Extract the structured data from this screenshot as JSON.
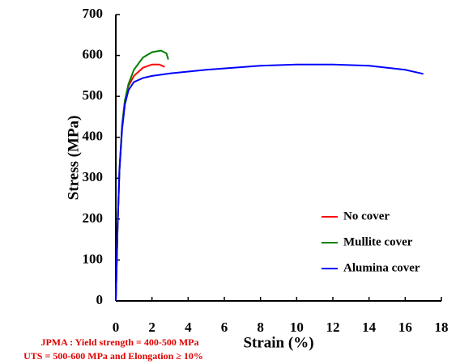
{
  "chart_data": {
    "type": "line",
    "x_label": "Strain (%)",
    "y_label": "Stress (MPa)",
    "xlim": [
      0,
      18
    ],
    "ylim": [
      0,
      700
    ],
    "xticks": [
      0,
      2,
      4,
      6,
      8,
      10,
      12,
      14,
      16,
      18
    ],
    "yticks": [
      0,
      100,
      200,
      300,
      400,
      500,
      600,
      700
    ],
    "legend": "lower right",
    "series": [
      {
        "name": "No cover",
        "color": "#ff0000",
        "x": [
          0,
          0.1,
          0.2,
          0.35,
          0.5,
          0.7,
          1.0,
          1.5,
          2.0,
          2.4,
          2.7
        ],
        "values": [
          0,
          180,
          320,
          430,
          490,
          525,
          550,
          570,
          578,
          578,
          572
        ]
      },
      {
        "name": "Mullite cover",
        "color": "#008000",
        "x": [
          0,
          0.1,
          0.2,
          0.35,
          0.5,
          0.7,
          1.0,
          1.5,
          2.0,
          2.5,
          2.8,
          2.9
        ],
        "values": [
          0,
          180,
          320,
          430,
          490,
          530,
          565,
          595,
          608,
          612,
          605,
          590
        ]
      },
      {
        "name": "Alumina cover",
        "color": "#0000ff",
        "x": [
          0,
          0.1,
          0.2,
          0.35,
          0.5,
          0.7,
          1.0,
          1.5,
          2.0,
          3.0,
          5.0,
          8.0,
          10.0,
          12.0,
          14.0,
          16.0,
          17.0
        ],
        "values": [
          0,
          180,
          320,
          420,
          480,
          515,
          535,
          545,
          550,
          556,
          565,
          575,
          578,
          578,
          575,
          565,
          555
        ]
      }
    ],
    "annotations": [
      "JPMA : Yield strength = 400-500 MPa",
      "UTS = 500-600 MPa and Elongation ≥ 10%"
    ]
  }
}
